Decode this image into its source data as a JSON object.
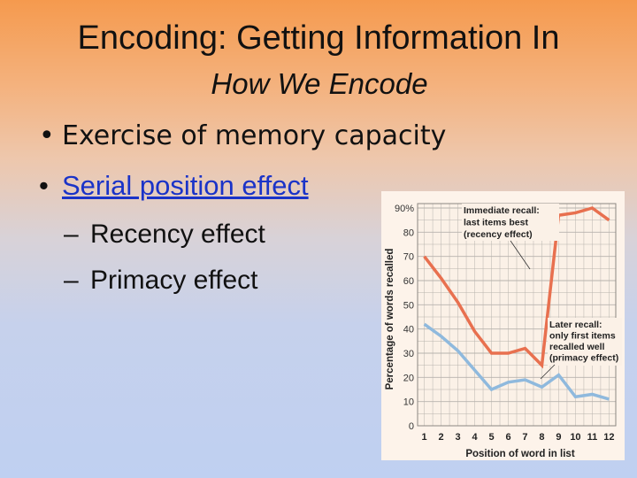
{
  "slide": {
    "title": "Encoding: Getting Information In",
    "subtitle": "How We Encode",
    "bullets": [
      {
        "bullet": "•",
        "text": "Exercise  of memory capacity"
      },
      {
        "bullet": "•",
        "text": "Serial position effect"
      }
    ],
    "subbullets": [
      {
        "dash": "–",
        "text": "Recency effect"
      },
      {
        "dash": "–",
        "text": "Primacy effect"
      }
    ]
  },
  "colors": {
    "accent_link": "#1a33c8",
    "immediate_line": "#e8704f",
    "later_line": "#8fb9dd",
    "grid": "#b7b2ad",
    "chart_bg": "#fdf3ea"
  },
  "chart_data": {
    "type": "line",
    "xlabel": "Position of word in list",
    "ylabel": "Percentage of words recalled",
    "x": [
      1,
      2,
      3,
      4,
      5,
      6,
      7,
      8,
      9,
      10,
      11,
      12
    ],
    "y_ticks": [
      "90%",
      "80",
      "70",
      "60",
      "50",
      "40",
      "30",
      "20",
      "10",
      "0"
    ],
    "ylim": [
      0,
      90
    ],
    "grid": true,
    "series": [
      {
        "values": [
          70,
          61,
          51,
          39,
          30,
          30,
          32,
          25,
          87,
          88,
          90,
          85
        ]
      },
      {
        "values": [
          42,
          37,
          31,
          23,
          15,
          18,
          19,
          16,
          21,
          12,
          13,
          11
        ]
      }
    ],
    "annotations": [
      {
        "lines": [
          "Immediate recall:",
          "last items best",
          "(recency effect)"
        ]
      },
      {
        "lines": [
          "Later recall:",
          "only first items",
          "recalled well",
          "(primacy effect)"
        ]
      }
    ]
  }
}
